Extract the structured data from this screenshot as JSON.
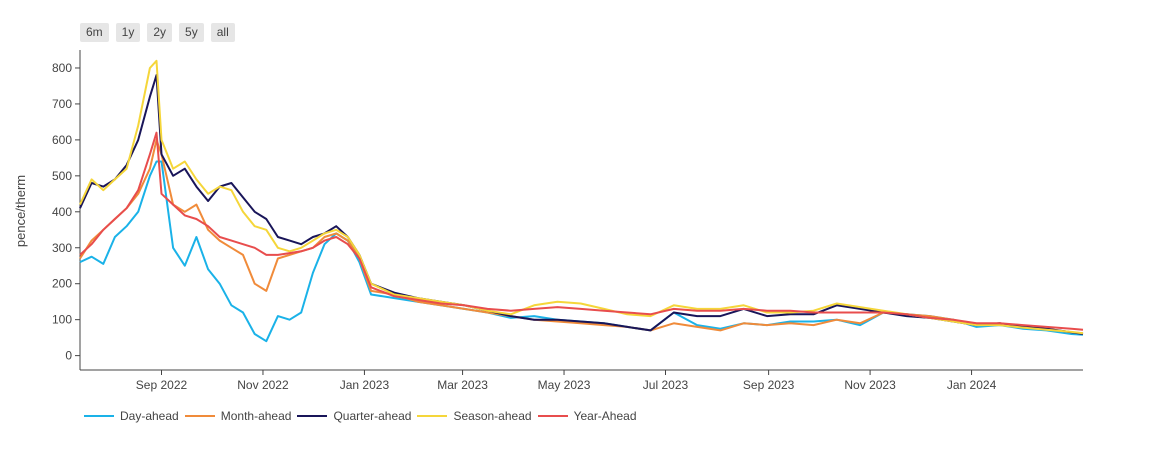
{
  "range_buttons": [
    "6m",
    "1y",
    "2y",
    "5y",
    "all"
  ],
  "chart_data": {
    "type": "line",
    "title": "",
    "xlabel": "",
    "ylabel": "pence/therm",
    "ylim": [
      -40,
      850
    ],
    "xlim": [
      "2022-07-14",
      "2024-03-08"
    ],
    "yticks": [
      0,
      100,
      200,
      300,
      400,
      500,
      600,
      700,
      800
    ],
    "xticks": [
      {
        "date": "2022-09-01",
        "label": "Sep 2022"
      },
      {
        "date": "2022-11-01",
        "label": "Nov 2022"
      },
      {
        "date": "2023-01-01",
        "label": "Jan 2023"
      },
      {
        "date": "2023-03-01",
        "label": "Mar 2023"
      },
      {
        "date": "2023-05-01",
        "label": "May 2023"
      },
      {
        "date": "2023-07-01",
        "label": "Jul 2023"
      },
      {
        "date": "2023-09-01",
        "label": "Sep 2023"
      },
      {
        "date": "2023-11-01",
        "label": "Nov 2023"
      },
      {
        "date": "2024-01-01",
        "label": "Jan 2024"
      }
    ],
    "grid": false,
    "legend_position": "bottom",
    "x": [
      "2022-07-14",
      "2022-07-21",
      "2022-07-28",
      "2022-08-04",
      "2022-08-11",
      "2022-08-18",
      "2022-08-25",
      "2022-08-29",
      "2022-09-01",
      "2022-09-08",
      "2022-09-15",
      "2022-09-22",
      "2022-09-29",
      "2022-10-06",
      "2022-10-13",
      "2022-10-20",
      "2022-10-27",
      "2022-11-03",
      "2022-11-10",
      "2022-11-17",
      "2022-11-24",
      "2022-12-01",
      "2022-12-08",
      "2022-12-15",
      "2022-12-22",
      "2022-12-29",
      "2023-01-05",
      "2023-01-19",
      "2023-02-02",
      "2023-02-16",
      "2023-03-02",
      "2023-03-16",
      "2023-03-30",
      "2023-04-13",
      "2023-04-27",
      "2023-05-11",
      "2023-05-25",
      "2023-06-08",
      "2023-06-22",
      "2023-07-06",
      "2023-07-20",
      "2023-08-03",
      "2023-08-17",
      "2023-08-31",
      "2023-09-14",
      "2023-09-28",
      "2023-10-12",
      "2023-10-26",
      "2023-11-09",
      "2023-11-23",
      "2023-12-07",
      "2023-12-21",
      "2024-01-04",
      "2024-01-18",
      "2024-02-01",
      "2024-02-15",
      "2024-03-01",
      "2024-03-08"
    ],
    "series": [
      {
        "name": "Day-ahead",
        "color": "#1ab2e8",
        "values": [
          260,
          275,
          255,
          330,
          360,
          400,
          500,
          540,
          540,
          300,
          250,
          330,
          240,
          200,
          140,
          120,
          60,
          40,
          110,
          100,
          120,
          230,
          310,
          340,
          320,
          260,
          170,
          160,
          150,
          140,
          130,
          120,
          105,
          110,
          100,
          95,
          90,
          80,
          70,
          120,
          85,
          75,
          90,
          85,
          95,
          95,
          100,
          85,
          120,
          115,
          110,
          100,
          80,
          85,
          75,
          70,
          60,
          58
        ]
      },
      {
        "name": "Month-ahead",
        "color": "#f08b3a",
        "values": [
          270,
          320,
          350,
          380,
          410,
          450,
          520,
          600,
          560,
          420,
          400,
          420,
          350,
          320,
          300,
          280,
          200,
          180,
          270,
          280,
          290,
          300,
          330,
          340,
          320,
          270,
          180,
          170,
          150,
          140,
          130,
          120,
          110,
          100,
          95,
          90,
          85,
          80,
          70,
          90,
          80,
          70,
          90,
          85,
          90,
          85,
          100,
          90,
          120,
          115,
          110,
          100,
          85,
          90,
          80,
          75,
          65,
          62
        ]
      },
      {
        "name": "Quarter-ahead",
        "color": "#191559",
        "values": [
          410,
          480,
          470,
          490,
          530,
          600,
          720,
          780,
          560,
          500,
          520,
          470,
          430,
          470,
          480,
          440,
          400,
          380,
          330,
          320,
          310,
          330,
          340,
          360,
          330,
          280,
          200,
          175,
          160,
          150,
          140,
          125,
          110,
          100,
          100,
          95,
          90,
          80,
          70,
          120,
          110,
          110,
          130,
          110,
          115,
          115,
          140,
          130,
          120,
          110,
          105,
          95,
          85,
          90,
          80,
          75,
          65,
          60
        ]
      },
      {
        "name": "Season-ahead",
        "color": "#f5d63a",
        "values": [
          420,
          490,
          460,
          490,
          520,
          640,
          800,
          820,
          600,
          520,
          540,
          490,
          450,
          470,
          460,
          400,
          360,
          350,
          300,
          290,
          300,
          320,
          340,
          350,
          330,
          280,
          200,
          170,
          160,
          150,
          140,
          125,
          115,
          140,
          150,
          145,
          130,
          115,
          110,
          140,
          130,
          130,
          140,
          120,
          120,
          125,
          145,
          135,
          125,
          115,
          105,
          95,
          85,
          85,
          78,
          72,
          66,
          62
        ]
      },
      {
        "name": "Year-Ahead",
        "color": "#e84d4d",
        "values": [
          280,
          310,
          350,
          380,
          410,
          460,
          560,
          620,
          450,
          420,
          390,
          380,
          360,
          330,
          320,
          310,
          300,
          280,
          280,
          285,
          290,
          300,
          320,
          330,
          310,
          270,
          190,
          165,
          155,
          145,
          140,
          130,
          125,
          130,
          135,
          130,
          125,
          120,
          115,
          130,
          125,
          125,
          130,
          125,
          125,
          120,
          120,
          120,
          120,
          115,
          105,
          100,
          90,
          90,
          85,
          80,
          75,
          72
        ]
      }
    ]
  }
}
